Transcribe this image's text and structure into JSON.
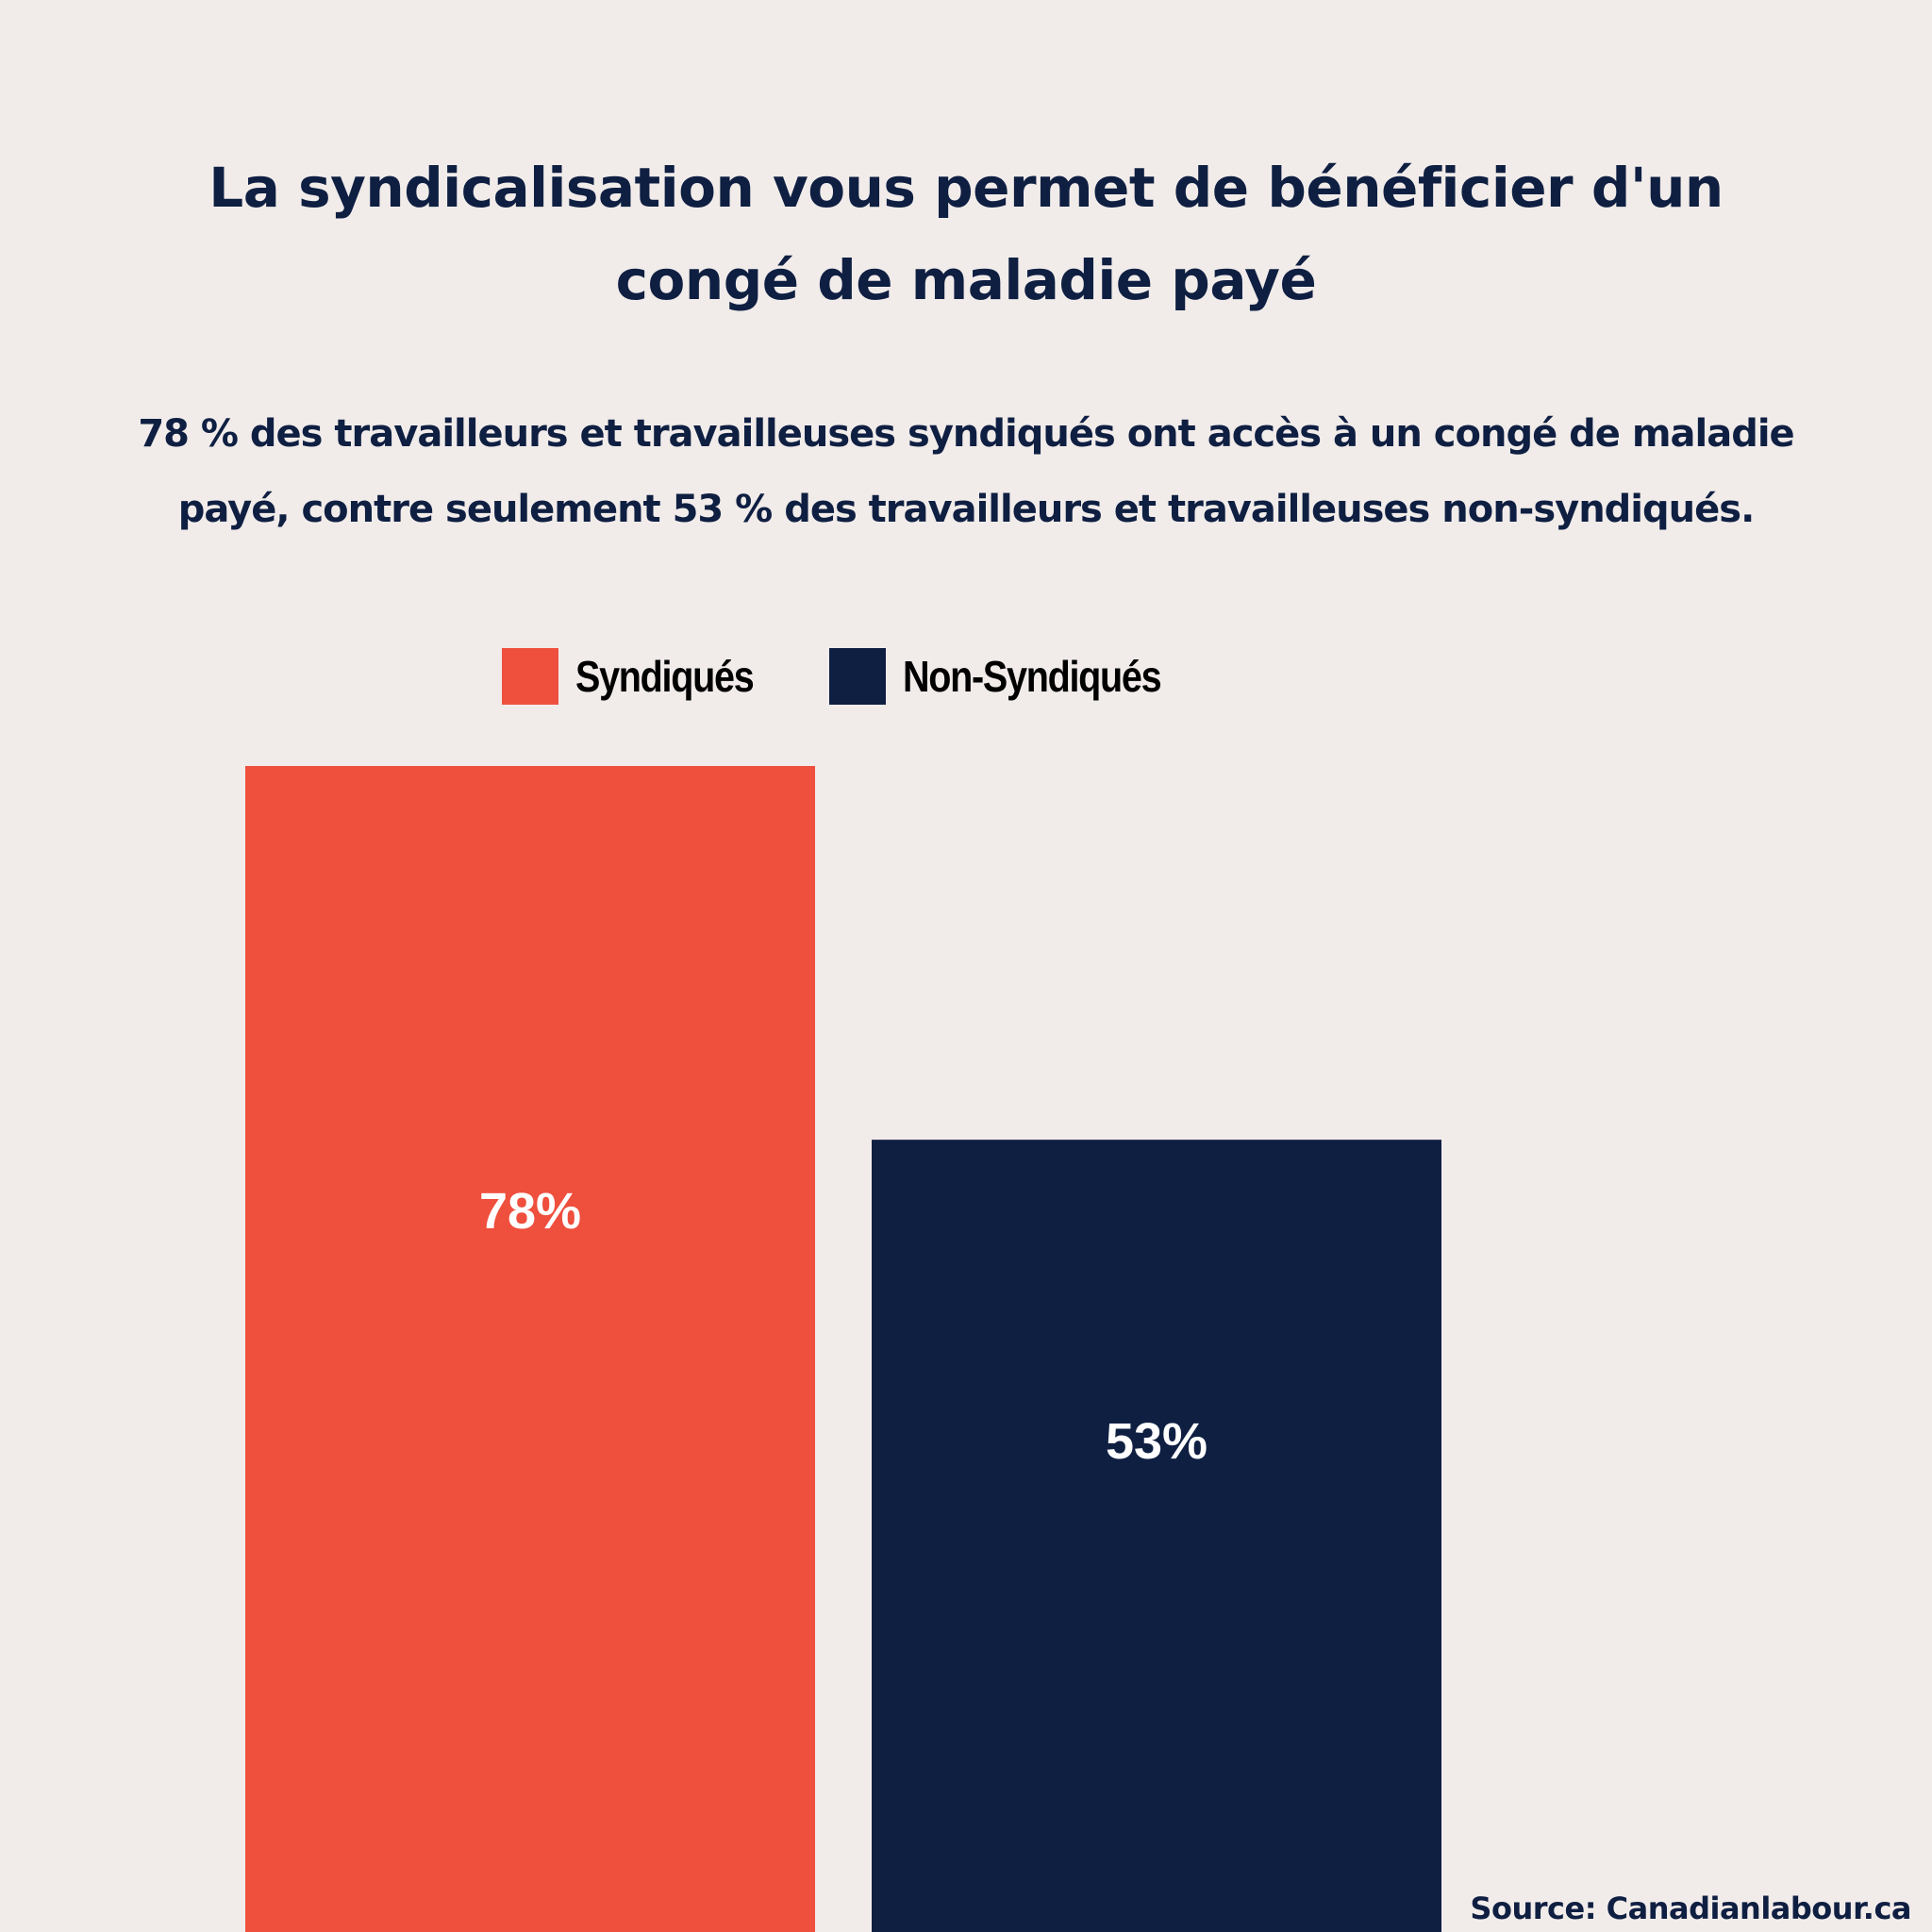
{
  "header": {
    "title_lines": [
      "La syndicalisation vous permet de bénéficier d'un",
      "congé de maladie payé"
    ],
    "subtitle_lines": [
      "78 % des travailleurs et travailleuses syndiqués ont accès à un congé de maladie",
      "payé, contre seulement 53 % des travailleurs et travailleuses non-syndiqués."
    ]
  },
  "legend": {
    "items": [
      {
        "label": "Syndiqués",
        "color": "#ef4f3d"
      },
      {
        "label": "Non-Syndiqués",
        "color": "#0f1f42"
      }
    ]
  },
  "chart_data": {
    "type": "bar",
    "title": "La syndicalisation vous permet de bénéficier d'un congé de maladie payé",
    "categories": [
      "Syndiqués",
      "Non-Syndiqués"
    ],
    "values": [
      78,
      53
    ],
    "value_labels": [
      "78%",
      "53%"
    ],
    "colors": [
      "#ef4f3d",
      "#0f1f42"
    ],
    "ylim": [
      0,
      100
    ],
    "grid": false,
    "legend_position": "top-center",
    "xlabel": "",
    "ylabel": ""
  },
  "footer": {
    "source": "Source: Canadianlabour.ca"
  }
}
